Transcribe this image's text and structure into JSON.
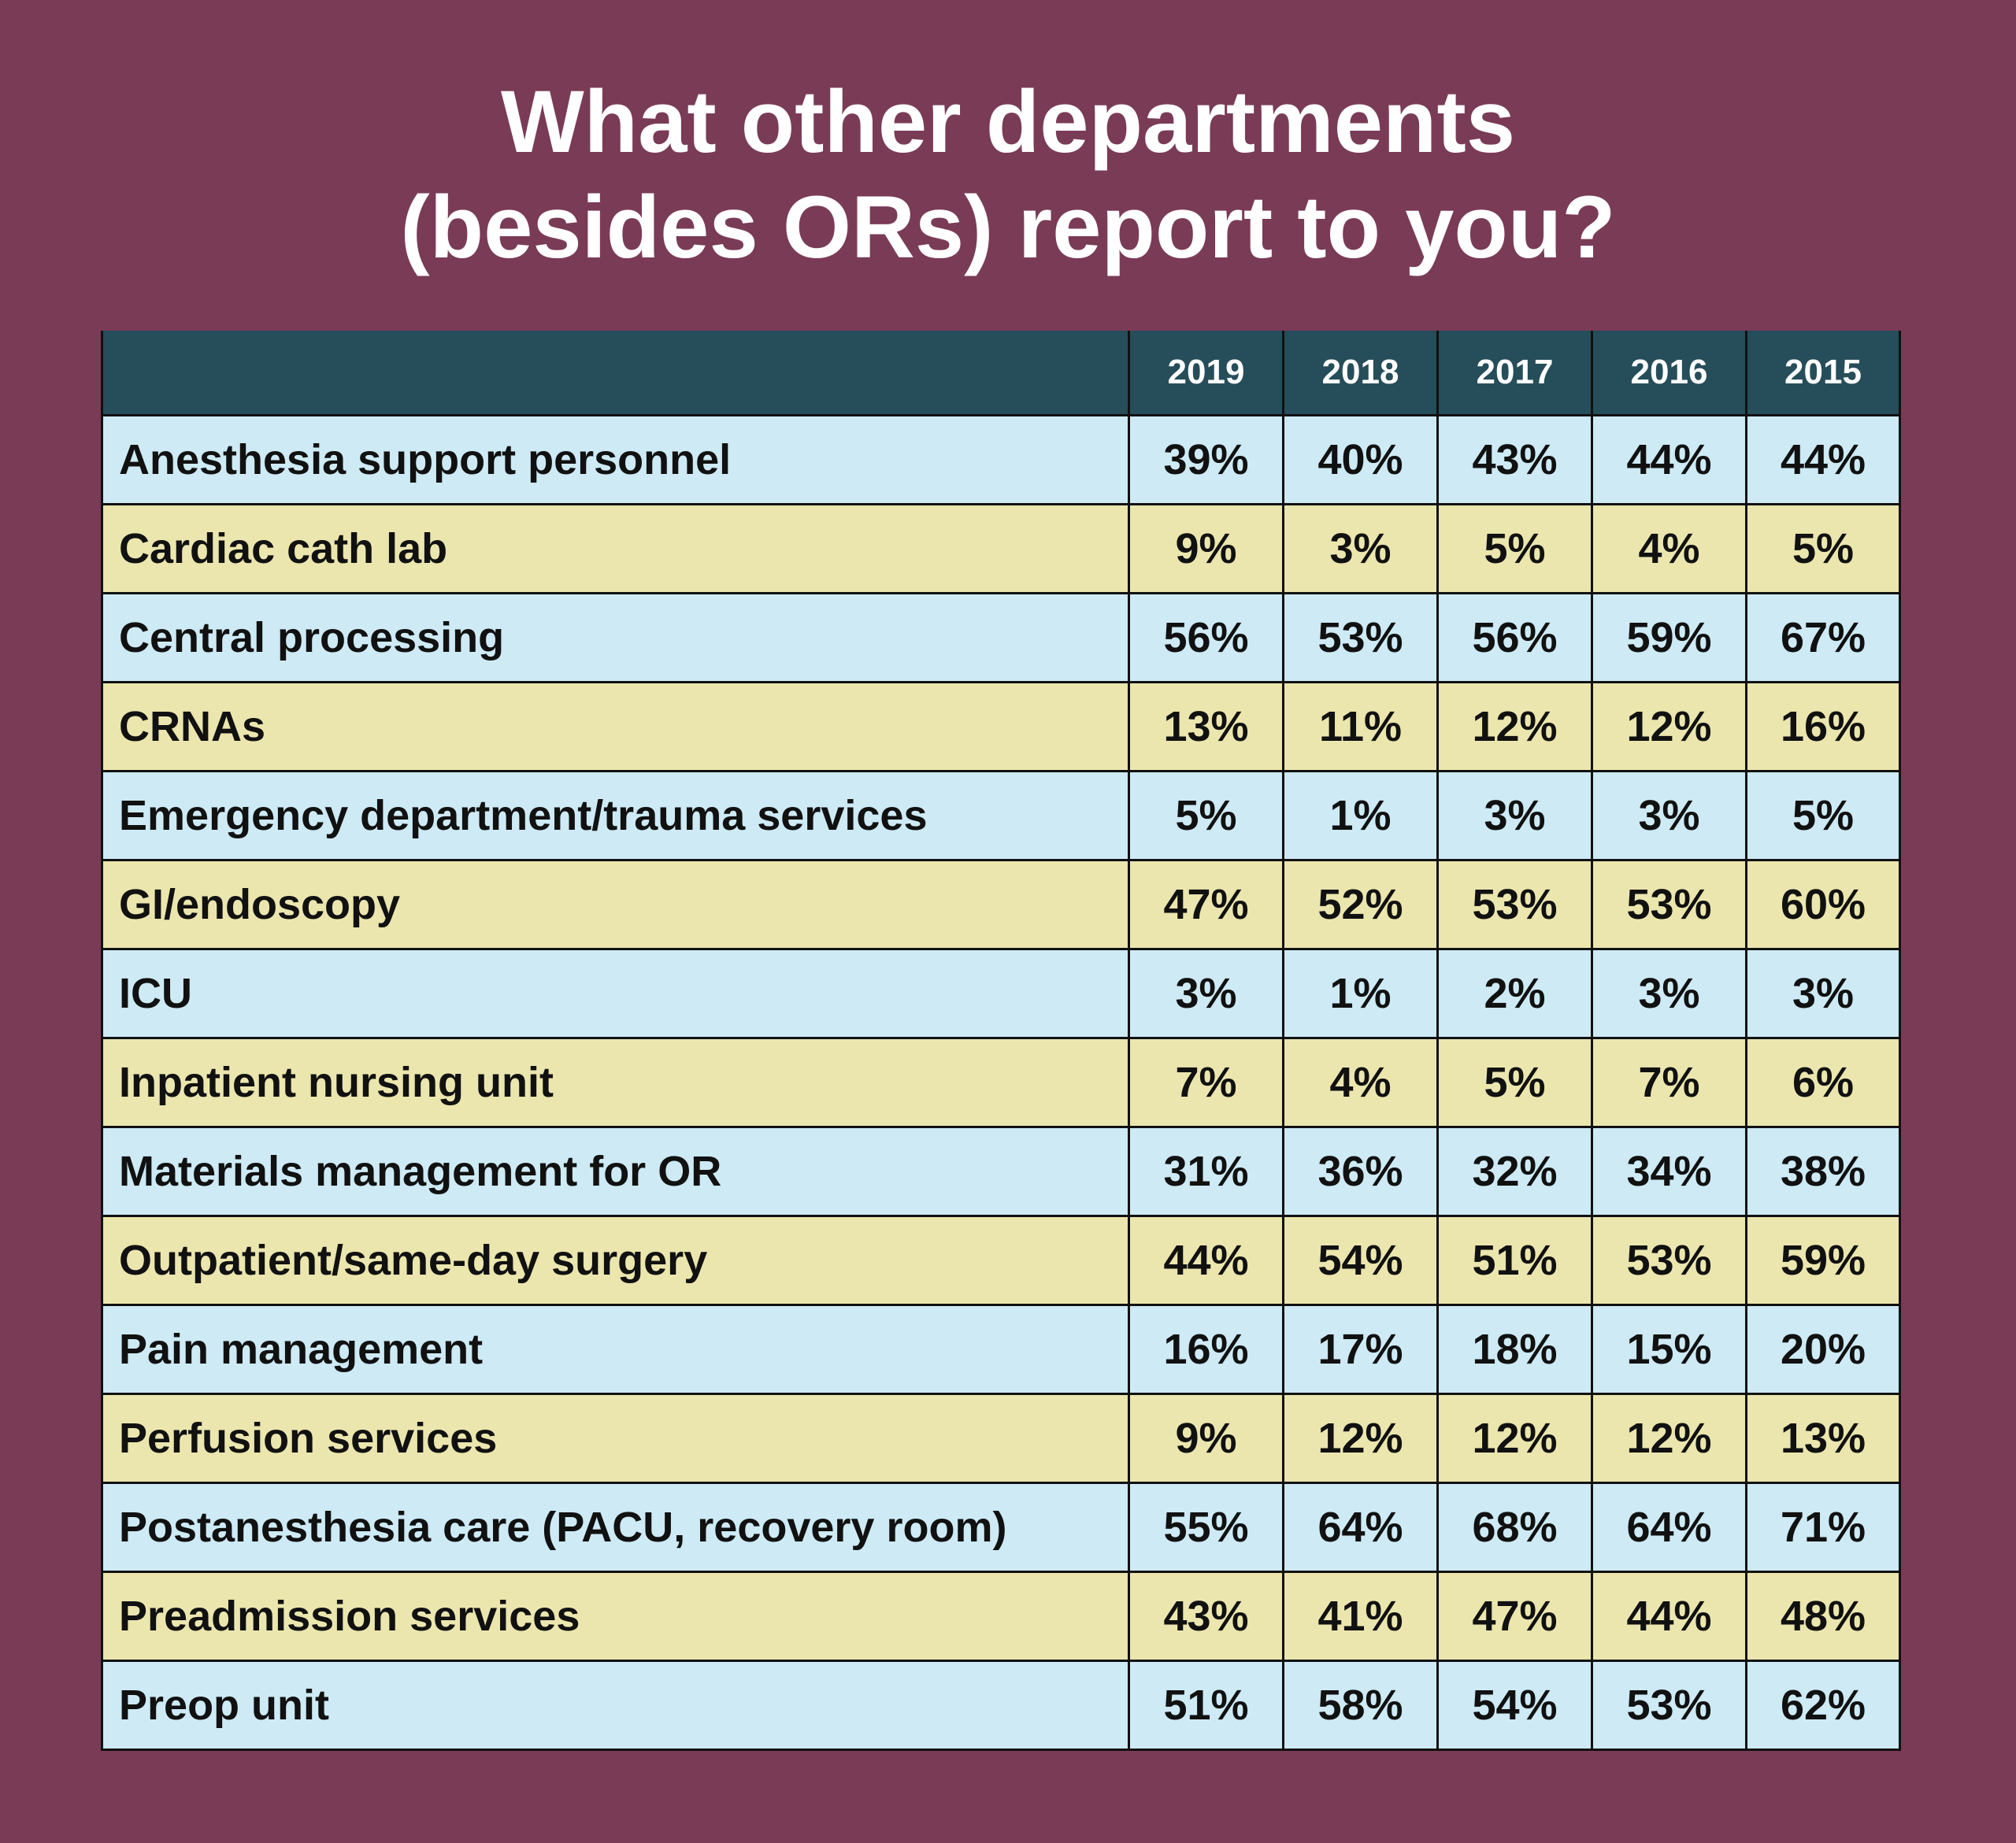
{
  "title": {
    "line1": "What other departments",
    "line2": "(besides ORs) report to you?"
  },
  "colors": {
    "background": "#7a3b57",
    "header": "#264d5a",
    "row_blue": "#cdeaf5",
    "row_yellow": "#ebe6ae"
  },
  "chart_data": {
    "type": "table",
    "title": "What other departments (besides ORs) report to you?",
    "columns": [
      "2019",
      "2018",
      "2017",
      "2016",
      "2015"
    ],
    "rows": [
      {
        "label": "Anesthesia support personnel",
        "values": [
          "39%",
          "40%",
          "43%",
          "44%",
          "44%"
        ]
      },
      {
        "label": "Cardiac cath lab",
        "values": [
          "9%",
          "3%",
          "5%",
          "4%",
          "5%"
        ]
      },
      {
        "label": "Central processing",
        "values": [
          "56%",
          "53%",
          "56%",
          "59%",
          "67%"
        ]
      },
      {
        "label": "CRNAs",
        "values": [
          "13%",
          "11%",
          "12%",
          "12%",
          "16%"
        ]
      },
      {
        "label": "Emergency department/trauma services",
        "values": [
          "5%",
          "1%",
          "3%",
          "3%",
          "5%"
        ]
      },
      {
        "label": "GI/endoscopy",
        "values": [
          "47%",
          "52%",
          "53%",
          "53%",
          "60%"
        ]
      },
      {
        "label": "ICU",
        "values": [
          "3%",
          "1%",
          "2%",
          "3%",
          "3%"
        ]
      },
      {
        "label": "Inpatient nursing unit",
        "values": [
          "7%",
          "4%",
          "5%",
          "7%",
          "6%"
        ]
      },
      {
        "label": "Materials management for OR",
        "values": [
          "31%",
          "36%",
          "32%",
          "34%",
          "38%"
        ]
      },
      {
        "label": "Outpatient/same-day surgery",
        "values": [
          "44%",
          "54%",
          "51%",
          "53%",
          "59%"
        ]
      },
      {
        "label": "Pain management",
        "values": [
          "16%",
          "17%",
          "18%",
          "15%",
          "20%"
        ]
      },
      {
        "label": "Perfusion services",
        "values": [
          "9%",
          "12%",
          "12%",
          "12%",
          "13%"
        ]
      },
      {
        "label": "Postanesthesia care (PACU, recovery room)",
        "values": [
          "55%",
          "64%",
          "68%",
          "64%",
          "71%"
        ]
      },
      {
        "label": "Preadmission services",
        "values": [
          "43%",
          "41%",
          "47%",
          "44%",
          "48%"
        ]
      },
      {
        "label": "Preop unit",
        "values": [
          "51%",
          "58%",
          "54%",
          "53%",
          "62%"
        ]
      }
    ]
  }
}
